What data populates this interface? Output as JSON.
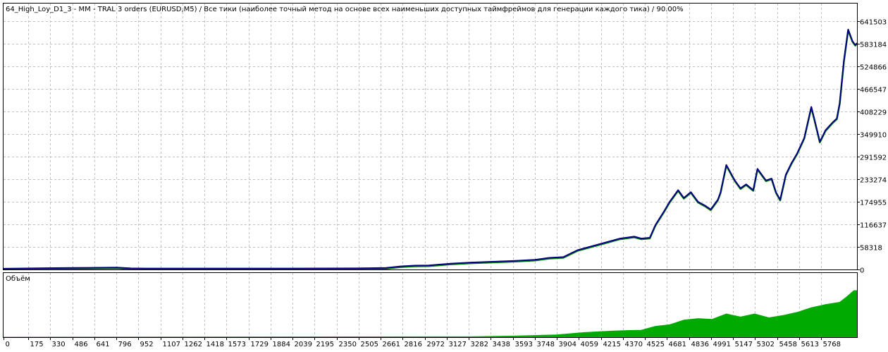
{
  "chart_data": [
    {
      "type": "line",
      "title": "64_High_Loy_D1_3 - MM - TRAL 3 orders (EURUSD,M5) / Все тики (наиболее точный метод на основе всех наименьших доступных таймфреймов для генерации каждого тика) / 90.00%",
      "xlabel": "",
      "ylabel": "",
      "x_ticks": [
        0,
        175,
        330,
        486,
        641,
        796,
        952,
        1107,
        1262,
        1418,
        1573,
        1729,
        1884,
        2039,
        2195,
        2350,
        2505,
        2661,
        2816,
        2972,
        3127,
        3282,
        3438,
        3593,
        3748,
        3904,
        4059,
        4215,
        4370,
        4525,
        4681,
        4836,
        4991,
        5147,
        5302,
        5458,
        5613,
        5768
      ],
      "x_tick_labels": [
        "0",
        "175",
        "330",
        "486",
        "641",
        "796",
        "952",
        "1107",
        "1262",
        "1418",
        "1573",
        "1729",
        "1884",
        "2039",
        "2195",
        "2350",
        "2505",
        "2661",
        "2816",
        "2972",
        "3127",
        "3282",
        "3438",
        "3593",
        "3748",
        "3904",
        "4059",
        "4215",
        "4370",
        "4525",
        "4681",
        "4836",
        "4991",
        "5147",
        "5302",
        "5458",
        "5613",
        "5768"
      ],
      "y_ticks": [
        0,
        58318,
        116637,
        174955,
        233274,
        291592,
        349910,
        408229,
        466547,
        524866,
        583184,
        641503
      ],
      "y_tick_labels": [
        "0",
        "58318",
        "116637",
        "174955",
        "233274",
        "291592",
        "349910",
        "408229",
        "466547",
        "524866",
        "583184",
        "641503"
      ],
      "ylim": [
        0,
        641503
      ],
      "xlim": [
        0,
        6022
      ],
      "grid": true,
      "colors": {
        "balance": "#000080",
        "equity": "#008000",
        "grid": "#c0c0c0"
      },
      "series": [
        {
          "x": [
            0,
            300,
            500,
            800,
            900,
            1000,
            1500,
            2000,
            2500,
            2700,
            2800,
            2900,
            3000,
            3150,
            3300,
            3450,
            3600,
            3750,
            3850,
            3950,
            4050,
            4150,
            4250,
            4350,
            4450,
            4500,
            4560,
            4600,
            4660,
            4700,
            4760,
            4800,
            4850,
            4900,
            4950,
            4990,
            5040,
            5060,
            5100,
            5160,
            5200,
            5240,
            5290,
            5320,
            5380,
            5420,
            5450,
            5480,
            5520,
            5560,
            5600,
            5650,
            5700,
            5720,
            5760,
            5800,
            5850,
            5880,
            5900,
            5930,
            5960,
            5990,
            6010,
            6022
          ],
          "values": [
            2000,
            3500,
            4000,
            5000,
            3000,
            2500,
            2500,
            2500,
            3000,
            4000,
            8000,
            10000,
            10500,
            15000,
            18000,
            20000,
            22000,
            25000,
            30000,
            32000,
            50000,
            60000,
            70000,
            80000,
            85000,
            80000,
            82000,
            115000,
            150000,
            175000,
            205000,
            185000,
            200000,
            175000,
            165000,
            155000,
            180000,
            200000,
            270000,
            230000,
            210000,
            220000,
            205000,
            260000,
            230000,
            235000,
            200000,
            180000,
            245000,
            275000,
            300000,
            340000,
            420000,
            390000,
            330000,
            360000,
            380000,
            390000,
            430000,
            540000,
            620000,
            590000,
            580000,
            585000
          ]
        }
      ]
    },
    {
      "type": "area",
      "title": "Объём",
      "series": [
        {
          "x": [
            0,
            3280,
            3600,
            3900,
            4100,
            4300,
            4500,
            4600,
            4700,
            4800,
            4900,
            5000,
            5100,
            5200,
            5300,
            5400,
            5500,
            5600,
            5700,
            5800,
            5900,
            5950,
            6000,
            6022
          ],
          "values": [
            0,
            0.5,
            1.5,
            3,
            6,
            8,
            9,
            14,
            16,
            22,
            24,
            23,
            30,
            26,
            30,
            25,
            28,
            32,
            38,
            42,
            45,
            52,
            60,
            60
          ]
        }
      ],
      "colors": {
        "fill": "#00aa00"
      }
    }
  ]
}
